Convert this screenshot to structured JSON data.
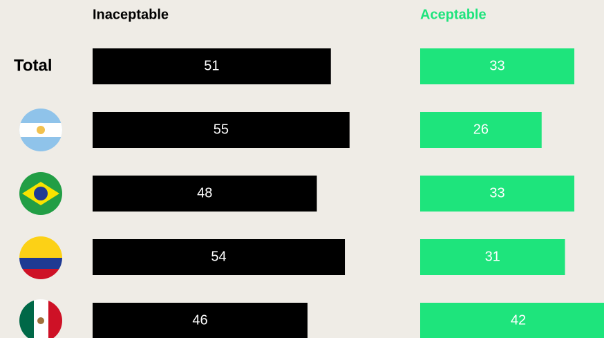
{
  "chart_data": {
    "type": "bar",
    "categories": [
      "Total",
      null,
      null,
      null,
      null
    ],
    "series": [
      {
        "name": "Inaceptable",
        "color": "#000000",
        "values": [
          51,
          55,
          48,
          54,
          46
        ]
      },
      {
        "name": "Aceptable",
        "color": "#1ee47c",
        "values": [
          33,
          26,
          33,
          31,
          42
        ]
      }
    ]
  }
}
